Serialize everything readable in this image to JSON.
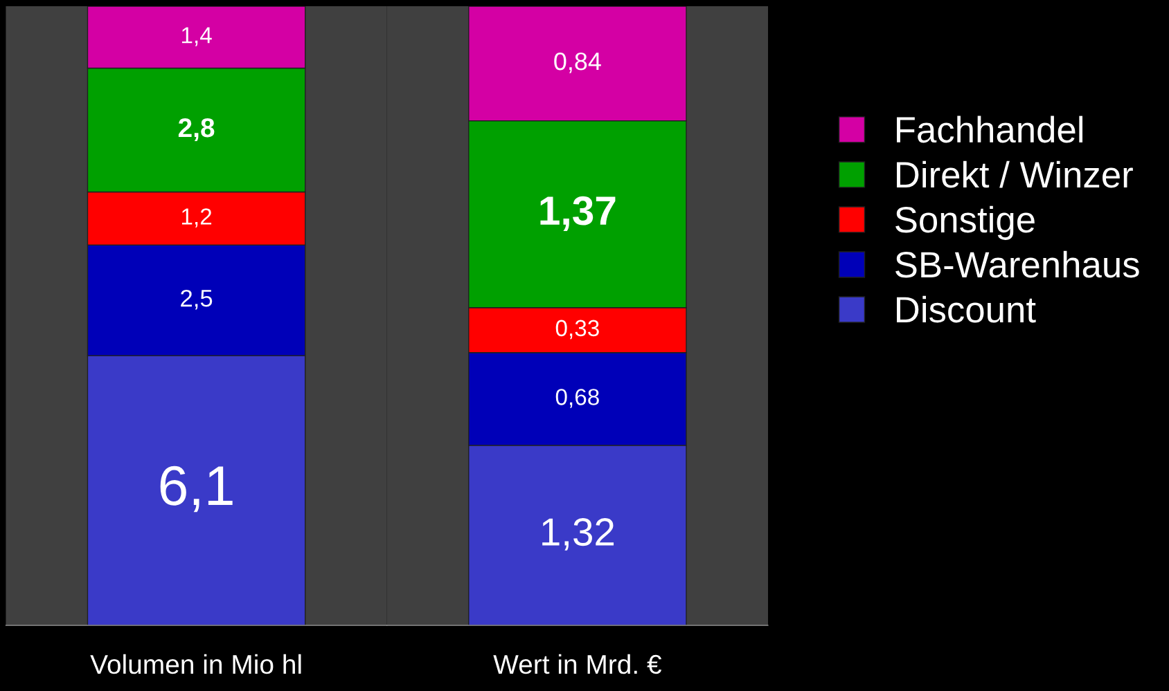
{
  "chart_data": [
    {
      "type": "bar",
      "stacked": true,
      "categories": [
        "Volumen in Mio hl"
      ],
      "ylim": [
        0,
        14.0
      ],
      "tick_labels": "x",
      "series": [
        {
          "color": "#3a3ac8",
          "values": [
            6.1
          ],
          "value_labels": [
            "6,1"
          ]
        },
        {
          "color": "#0000b8",
          "values": [
            2.5
          ],
          "value_labels": [
            "2,5"
          ]
        },
        {
          "color": "#ff0000",
          "values": [
            1.2
          ],
          "value_labels": [
            "1,2"
          ]
        },
        {
          "color": "#00a000",
          "values": [
            2.8
          ],
          "value_labels": [
            "2,8"
          ]
        },
        {
          "color": "#d400a4",
          "values": [
            1.4
          ],
          "value_labels": [
            "1,4"
          ]
        }
      ],
      "grid": false
    },
    {
      "type": "bar",
      "stacked": true,
      "categories": [
        "Wert in Mrd. €"
      ],
      "ylim": [
        0,
        4.54
      ],
      "tick_labels": "x",
      "series": [
        {
          "name": "Discount",
          "color": "#3a3ac8",
          "values": [
            1.32
          ],
          "value_labels": [
            "1,32"
          ]
        },
        {
          "name": "SB-Warenhaus",
          "color": "#0000b8",
          "values": [
            0.68
          ],
          "value_labels": [
            "0,68"
          ]
        },
        {
          "name": "Sonstige",
          "color": "#ff0000",
          "values": [
            0.33
          ],
          "value_labels": [
            "0,33"
          ]
        },
        {
          "name": "Direkt / Winzer",
          "color": "#00a000",
          "values": [
            1.37
          ],
          "value_labels": [
            "1,37"
          ]
        },
        {
          "name": "Fachhandel",
          "color": "#d400a4",
          "values": [
            0.84
          ],
          "value_labels": [
            "0,84"
          ]
        }
      ],
      "legend": "right",
      "grid": false
    }
  ]
}
